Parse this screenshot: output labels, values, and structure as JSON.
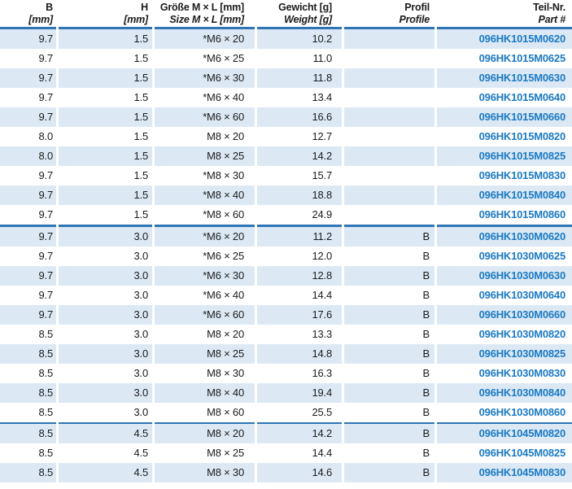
{
  "colors": {
    "stripe_row": "#DCE9F5",
    "separator_line": "#2E75B6",
    "part_number_text": "#1B7AC4",
    "body_text": "#1b1b1b"
  },
  "table": {
    "columns": [
      {
        "id": "b",
        "line1": "B",
        "line2": "[mm]"
      },
      {
        "id": "h",
        "line1": "H",
        "line2": "[mm]"
      },
      {
        "id": "size",
        "line1": "Größe M × L [mm]",
        "line2": "Size M × L [mm]"
      },
      {
        "id": "weight",
        "line1": "Gewicht [g]",
        "line2": "Weight [g]"
      },
      {
        "id": "profile",
        "line1": "Profil",
        "line2": "Profile"
      },
      {
        "id": "part",
        "line1": "Teil-Nr.",
        "line2": "Part #"
      }
    ],
    "group_breaks": [
      10,
      20
    ],
    "rows": [
      {
        "b": "9.7",
        "h": "1.5",
        "size": "*M6 × 20",
        "weight": "10.2",
        "profile": "",
        "part": "096HK1015M0620"
      },
      {
        "b": "9.7",
        "h": "1.5",
        "size": "*M6 × 25",
        "weight": "11.0",
        "profile": "",
        "part": "096HK1015M0625"
      },
      {
        "b": "9.7",
        "h": "1.5",
        "size": "*M6 × 30",
        "weight": "11.8",
        "profile": "",
        "part": "096HK1015M0630"
      },
      {
        "b": "9.7",
        "h": "1.5",
        "size": "*M6 × 40",
        "weight": "13.4",
        "profile": "",
        "part": "096HK1015M0640"
      },
      {
        "b": "9.7",
        "h": "1.5",
        "size": "*M6 × 60",
        "weight": "16.6",
        "profile": "",
        "part": "096HK1015M0660"
      },
      {
        "b": "8.0",
        "h": "1.5",
        "size": "M8 × 20",
        "weight": "12.7",
        "profile": "",
        "part": "096HK1015M0820"
      },
      {
        "b": "8.0",
        "h": "1.5",
        "size": "M8 × 25",
        "weight": "14.2",
        "profile": "",
        "part": "096HK1015M0825"
      },
      {
        "b": "9.7",
        "h": "1.5",
        "size": "*M8 × 30",
        "weight": "15.7",
        "profile": "",
        "part": "096HK1015M0830"
      },
      {
        "b": "9.7",
        "h": "1.5",
        "size": "*M8 × 40",
        "weight": "18.8",
        "profile": "",
        "part": "096HK1015M0840"
      },
      {
        "b": "9.7",
        "h": "1.5",
        "size": "*M8 × 60",
        "weight": "24.9",
        "profile": "",
        "part": "096HK1015M0860"
      },
      {
        "b": "9.7",
        "h": "3.0",
        "size": "*M6 × 20",
        "weight": "11.2",
        "profile": "B",
        "part": "096HK1030M0620"
      },
      {
        "b": "9.7",
        "h": "3.0",
        "size": "*M6 × 25",
        "weight": "12.0",
        "profile": "B",
        "part": "096HK1030M0625"
      },
      {
        "b": "9.7",
        "h": "3.0",
        "size": "*M6 × 30",
        "weight": "12.8",
        "profile": "B",
        "part": "096HK1030M0630"
      },
      {
        "b": "9.7",
        "h": "3.0",
        "size": "*M6 × 40",
        "weight": "14.4",
        "profile": "B",
        "part": "096HK1030M0640"
      },
      {
        "b": "9.7",
        "h": "3.0",
        "size": "*M6 × 60",
        "weight": "17.6",
        "profile": "B",
        "part": "096HK1030M0660"
      },
      {
        "b": "8.5",
        "h": "3.0",
        "size": "M8 × 20",
        "weight": "13.3",
        "profile": "B",
        "part": "096HK1030M0820"
      },
      {
        "b": "8.5",
        "h": "3.0",
        "size": "M8 × 25",
        "weight": "14.8",
        "profile": "B",
        "part": "096HK1030M0825"
      },
      {
        "b": "8.5",
        "h": "3.0",
        "size": "M8 × 30",
        "weight": "16.3",
        "profile": "B",
        "part": "096HK1030M0830"
      },
      {
        "b": "8.5",
        "h": "3.0",
        "size": "M8 × 40",
        "weight": "19.4",
        "profile": "B",
        "part": "096HK1030M0840"
      },
      {
        "b": "8.5",
        "h": "3.0",
        "size": "M8 × 60",
        "weight": "25.5",
        "profile": "B",
        "part": "096HK1030M0860"
      },
      {
        "b": "8.5",
        "h": "4.5",
        "size": "M8 × 20",
        "weight": "14.2",
        "profile": "B",
        "part": "096HK1045M0820"
      },
      {
        "b": "8.5",
        "h": "4.5",
        "size": "M8 × 25",
        "weight": "14.4",
        "profile": "B",
        "part": "096HK1045M0825"
      },
      {
        "b": "8.5",
        "h": "4.5",
        "size": "M8 × 30",
        "weight": "14.6",
        "profile": "B",
        "part": "096HK1045M0830"
      }
    ]
  }
}
